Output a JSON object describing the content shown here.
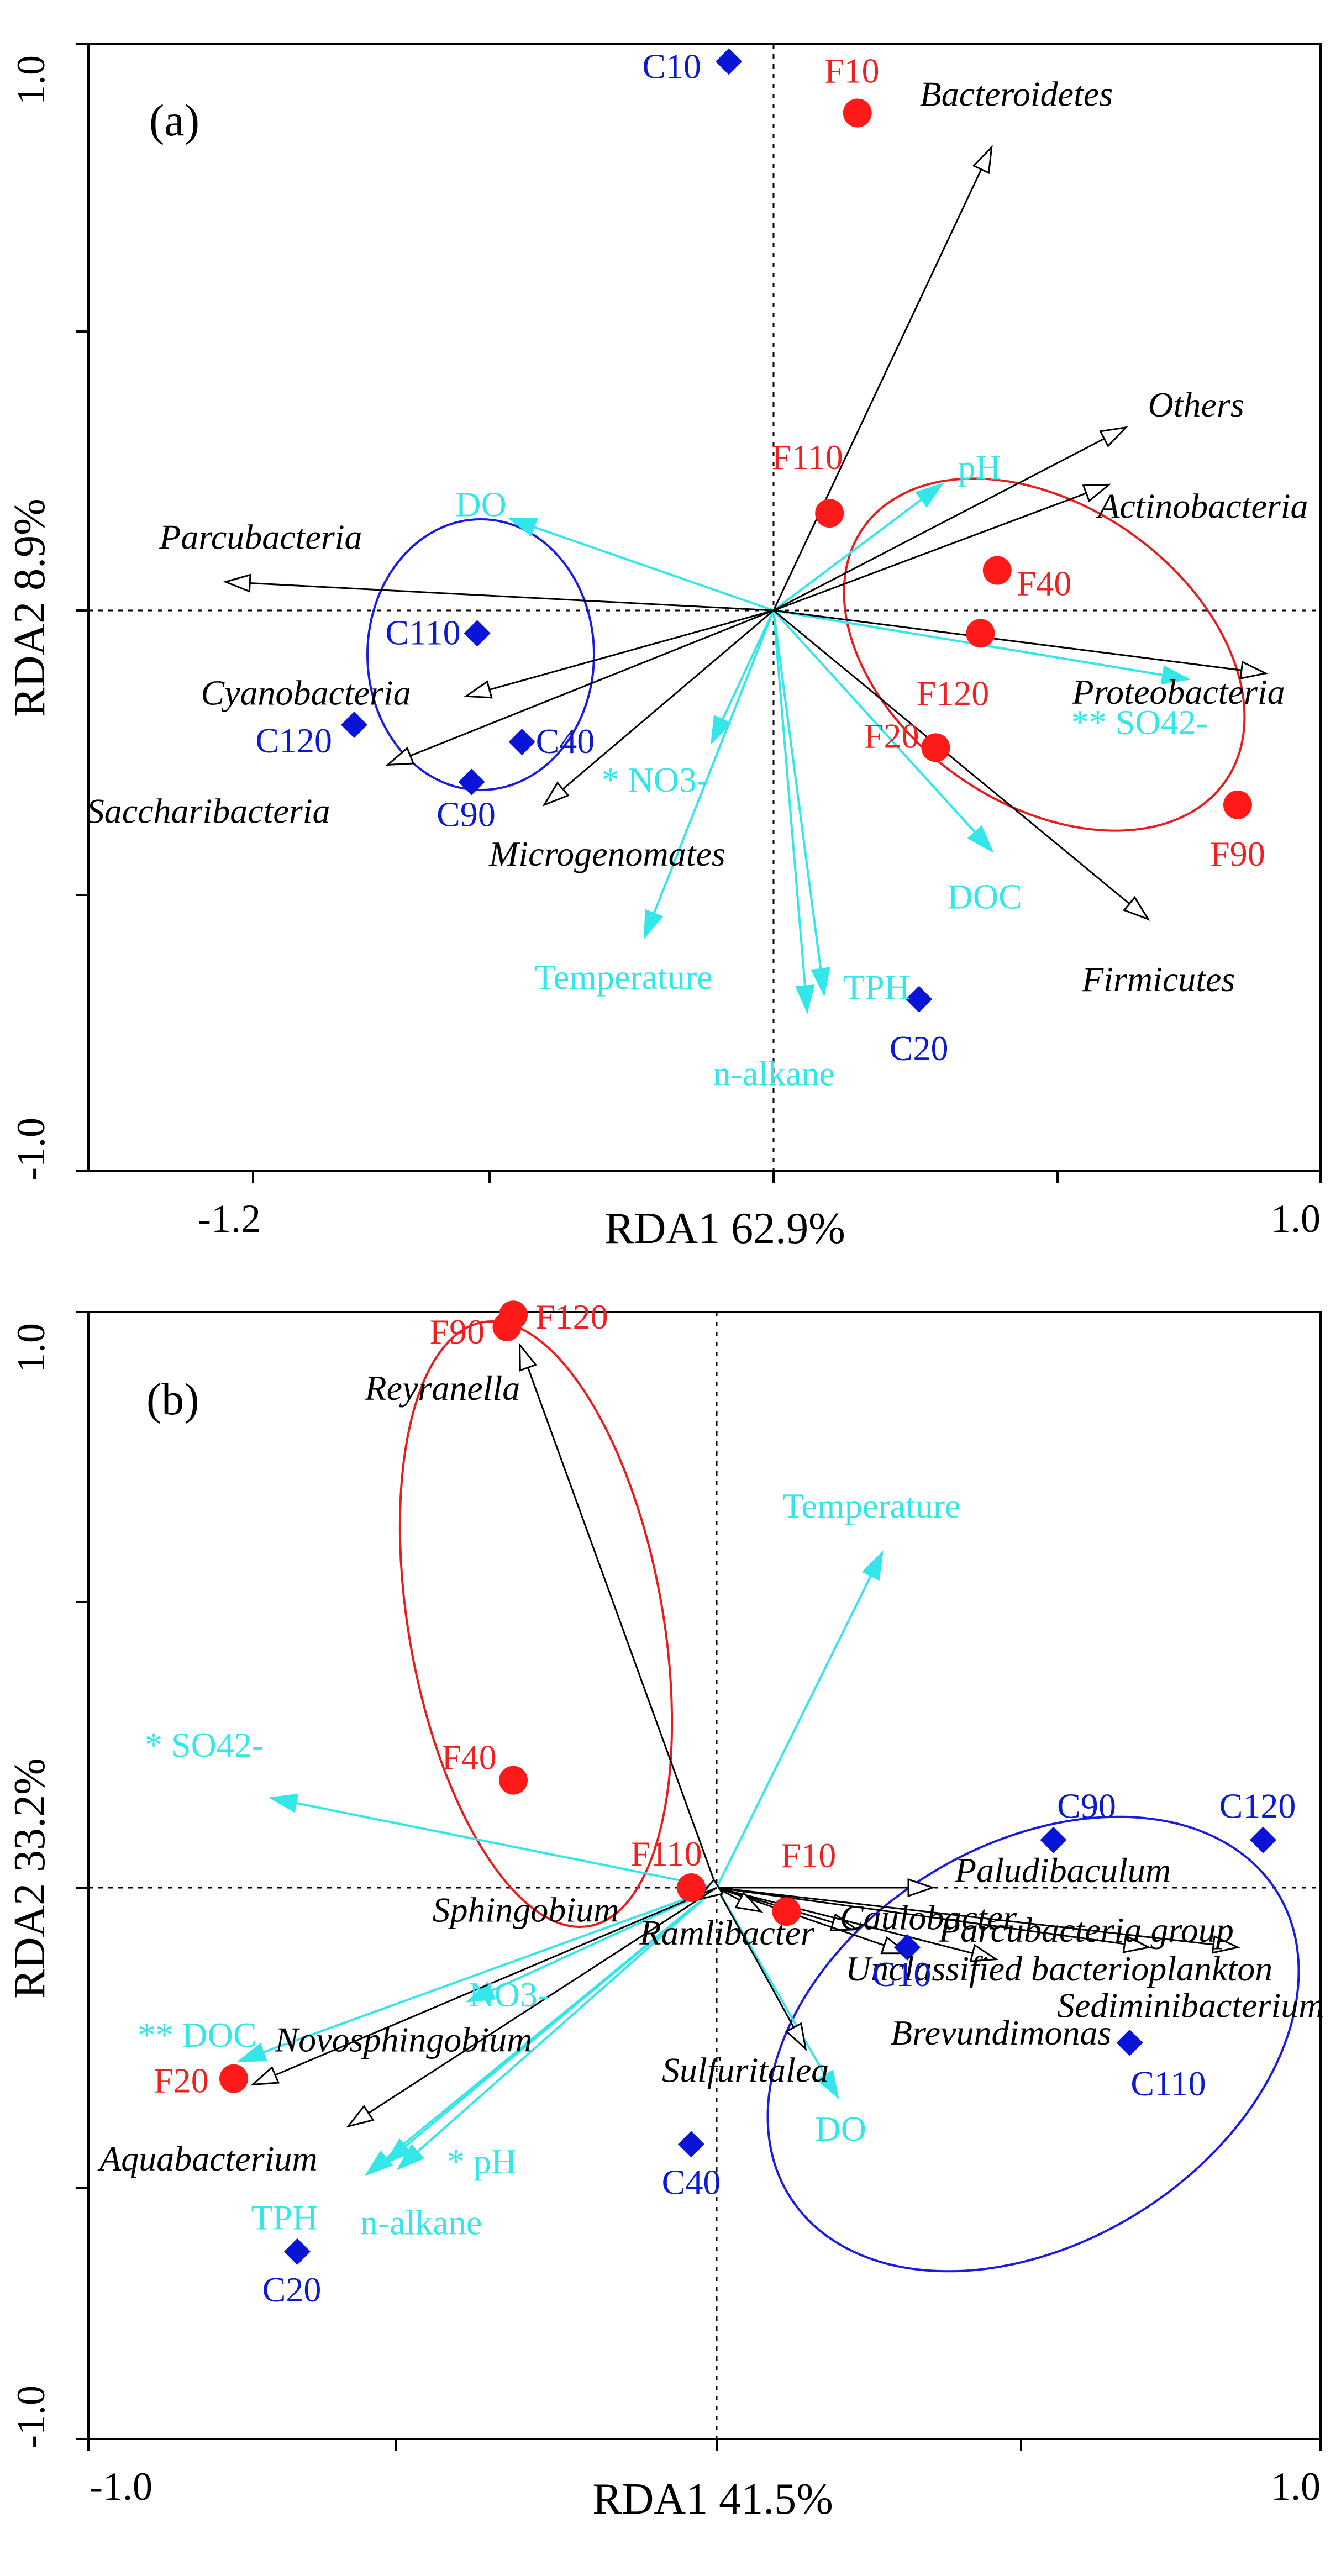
{
  "colors": {
    "species_arrow": "#000000",
    "env_arrow": "#33e6ea",
    "treatment_F": "#ff1a1a",
    "control_C": "#0a14d6",
    "ellipse_F": "#e81c1c",
    "ellipse_C": "#1a1ae0",
    "axis_line": "#000000",
    "grid_line": "#000000",
    "label_F": "#ee2020",
    "label_C": "#0c1ad0"
  },
  "chart_data": [
    {
      "type": "scatter",
      "panel_label": "(a)",
      "xlabel": "RDA1 62.9%",
      "ylabel": "RDA2 8.9%",
      "xlim": [
        -1.2,
        1.0
      ],
      "ylim": [
        -1.0,
        1.0
      ],
      "x_tick_labels": [
        "-1.2",
        "1.0"
      ],
      "y_tick_labels": [
        "1.0",
        "-1.0"
      ],
      "samples": [
        {
          "label": "C10",
          "group": "C",
          "x": -0.08,
          "y": 0.96
        },
        {
          "label": "C20",
          "group": "C",
          "x": 0.26,
          "y": -0.68
        },
        {
          "label": "C40",
          "group": "C",
          "x": -0.45,
          "y": -0.23
        },
        {
          "label": "C90",
          "group": "C",
          "x": -0.54,
          "y": -0.3
        },
        {
          "label": "C110",
          "group": "C",
          "x": -0.53,
          "y": -0.04
        },
        {
          "label": "C120",
          "group": "C",
          "x": -0.75,
          "y": -0.2
        },
        {
          "label": "F10",
          "group": "F",
          "x": 0.15,
          "y": 0.87
        },
        {
          "label": "F20",
          "group": "F",
          "x": 0.29,
          "y": -0.24
        },
        {
          "label": "F40",
          "group": "F",
          "x": 0.4,
          "y": 0.07
        },
        {
          "label": "F90",
          "group": "F",
          "x": 0.83,
          "y": -0.34
        },
        {
          "label": "F110",
          "group": "F",
          "x": 0.1,
          "y": 0.17
        },
        {
          "label": "F120",
          "group": "F",
          "x": 0.37,
          "y": -0.04
        }
      ],
      "species": [
        {
          "label": "Bacteroidetes",
          "x": 0.39,
          "y": 0.81
        },
        {
          "label": "Others",
          "x": 0.63,
          "y": 0.32
        },
        {
          "label": "Actinobacteria",
          "x": 0.6,
          "y": 0.22
        },
        {
          "label": "Proteobacteria",
          "x": 0.88,
          "y": -0.11
        },
        {
          "label": "Firmicutes",
          "x": 0.67,
          "y": -0.54
        },
        {
          "label": "Parcubacteria",
          "x": -0.98,
          "y": 0.05
        },
        {
          "label": "Cyanobacteria",
          "x": -0.55,
          "y": -0.15
        },
        {
          "label": "Saccharibacteria",
          "x": -0.69,
          "y": -0.27
        },
        {
          "label": "Microgenomates",
          "x": -0.41,
          "y": -0.34
        }
      ],
      "env": [
        {
          "label": "pH",
          "x": 0.3,
          "y": 0.22
        },
        {
          "label": "DO",
          "x": -0.47,
          "y": 0.16
        },
        {
          "label": "** SO42-",
          "x": 0.74,
          "y": -0.12
        },
        {
          "label": "DOC",
          "x": 0.39,
          "y": -0.42
        },
        {
          "label": "* NO3-",
          "x": -0.11,
          "y": -0.23
        },
        {
          "label": "Temperature",
          "x": -0.23,
          "y": -0.57
        },
        {
          "label": "TPH",
          "x": 0.09,
          "y": -0.67
        },
        {
          "label": "n-alkane",
          "x": 0.06,
          "y": -0.7
        }
      ]
    },
    {
      "type": "scatter",
      "panel_label": "(b)",
      "xlabel": "RDA1 41.5%",
      "ylabel": "RDA2 33.2%",
      "xlim": [
        -1.0,
        1.0
      ],
      "ylim": [
        -1.0,
        1.0
      ],
      "x_tick_labels": [
        "-1.0",
        "1.0"
      ],
      "y_tick_labels": [
        "1.0",
        "-1.0"
      ],
      "samples": [
        {
          "label": "C10",
          "group": "C",
          "x": 0.3,
          "y": -0.1
        },
        {
          "label": "C20",
          "group": "C",
          "x": -0.66,
          "y": -0.61
        },
        {
          "label": "C40",
          "group": "C",
          "x": -0.04,
          "y": -0.43
        },
        {
          "label": "C90",
          "group": "C",
          "x": 0.53,
          "y": 0.08
        },
        {
          "label": "C110",
          "group": "C",
          "x": 0.65,
          "y": -0.26
        },
        {
          "label": "C120",
          "group": "C",
          "x": 0.86,
          "y": 0.08
        },
        {
          "label": "F10",
          "group": "F",
          "x": 0.11,
          "y": -0.04
        },
        {
          "label": "F20",
          "group": "F",
          "x": -0.76,
          "y": -0.32
        },
        {
          "label": "F40",
          "group": "F",
          "x": -0.32,
          "y": 0.18
        },
        {
          "label": "F90",
          "group": "F",
          "x": -0.33,
          "y": 0.94
        },
        {
          "label": "F110",
          "group": "F",
          "x": -0.04,
          "y": 0.0
        },
        {
          "label": "F120",
          "group": "F",
          "x": -0.32,
          "y": 0.96
        }
      ],
      "species": [
        {
          "label": "Reyranella",
          "x": -0.31,
          "y": 0.91
        },
        {
          "label": "Paludibaculum",
          "x": 0.34,
          "y": 0.0
        },
        {
          "label": "Caulobacter",
          "x": 0.22,
          "y": -0.07
        },
        {
          "label": "Parcubacteria group",
          "x": 0.68,
          "y": -0.1
        },
        {
          "label": "Unclassified bacterioplankton",
          "x": 0.82,
          "y": -0.1
        },
        {
          "label": "Sediminibacterium",
          "x": 0.44,
          "y": -0.12
        },
        {
          "label": "Brevundimonas",
          "x": 0.3,
          "y": -0.11
        },
        {
          "label": "Ramlibacter",
          "x": 0.07,
          "y": -0.04
        },
        {
          "label": "Sulfuritalea",
          "x": 0.14,
          "y": -0.27
        },
        {
          "label": "Sphingobium",
          "x": -0.03,
          "y": -0.02
        },
        {
          "label": "Novosphingobium",
          "x": -0.73,
          "y": -0.33
        },
        {
          "label": "Aquabacterium",
          "x": -0.58,
          "y": -0.4
        }
      ],
      "env": [
        {
          "label": "Temperature",
          "x": 0.26,
          "y": 0.56
        },
        {
          "label": "* SO42-",
          "x": -0.7,
          "y": 0.15
        },
        {
          "label": "** DOC",
          "x": -0.75,
          "y": -0.29
        },
        {
          "label": "NO3-",
          "x": -0.39,
          "y": -0.19
        },
        {
          "label": "* pH",
          "x": -0.52,
          "y": -0.46
        },
        {
          "label": "TPH",
          "x": -0.55,
          "y": -0.48
        },
        {
          "label": "n-alkane",
          "x": -0.5,
          "y": -0.47
        },
        {
          "label": "DO",
          "x": 0.19,
          "y": -0.35
        }
      ]
    }
  ]
}
